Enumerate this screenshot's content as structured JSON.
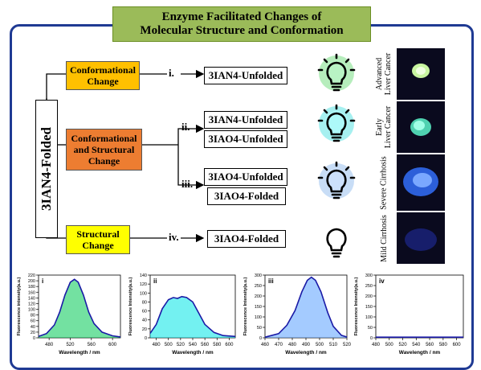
{
  "title": {
    "line1": "Enzyme Facilitated Changes of",
    "line2": "Molecular Structure and Conformation"
  },
  "root_label": "3IAN4-Folded",
  "branches": [
    {
      "label_lines": [
        "Conformational",
        "Change"
      ],
      "color": "#ffc000"
    },
    {
      "label_lines": [
        "Conformational",
        "and Structural",
        "Change"
      ],
      "color": "#ed7d31"
    },
    {
      "label_lines": [
        "Structural",
        "Change"
      ],
      "color": "#ffff00"
    }
  ],
  "steps": [
    "i.",
    "ii.",
    "iii.",
    "iv."
  ],
  "results": [
    "3IAN4-Unfolded",
    "3IAN4-Unfolded",
    "3IAO4-Unfolded",
    "3IAO4-Unfolded",
    "3IAO4-Folded",
    "3IAO4-Folded"
  ],
  "bulbs": [
    {
      "icon": "lightbulb-icon",
      "glow": "#2ecc40"
    },
    {
      "icon": "lightbulb-icon",
      "glow": "#00d4d4"
    },
    {
      "icon": "lightbulb-icon",
      "glow": "#4a90e2"
    },
    {
      "icon": "lightbulb-icon",
      "glow": "none"
    }
  ],
  "samples": [
    {
      "label_lines": [
        "Advanced",
        "Liver Cancer"
      ],
      "glow": "#c8f5a0"
    },
    {
      "label_lines": [
        "Early",
        "Liver Cancer"
      ],
      "glow": "#7fffd4"
    },
    {
      "label_lines": [
        "Severe Cirrhosis"
      ],
      "glow": "#3a7bff"
    },
    {
      "label_lines": [
        "Mild Cirrhosis"
      ],
      "glow": "#1a237e"
    }
  ],
  "chart_data": [
    {
      "type": "line",
      "panel": "i",
      "fill": "#00c853",
      "xlabel": "Wavelength / nm",
      "ylabel": "Fluorescence intensity(a.u.)",
      "xlim": [
        460,
        615
      ],
      "ylim": [
        0,
        220
      ],
      "xticks": [
        480,
        520,
        560,
        600
      ],
      "yticks": [
        0,
        20,
        40,
        60,
        80,
        100,
        120,
        140,
        160,
        180,
        200,
        220
      ],
      "x": [
        460,
        475,
        490,
        500,
        510,
        520,
        528,
        535,
        545,
        555,
        565,
        580,
        600,
        615
      ],
      "y": [
        5,
        15,
        45,
        90,
        150,
        195,
        205,
        195,
        150,
        90,
        50,
        20,
        7,
        3
      ]
    },
    {
      "type": "line",
      "panel": "ii",
      "fill": "#00e5e5",
      "xlabel": "Wavelength / nm",
      "ylabel": "Fluorescence Intensity(a.u.)",
      "xlim": [
        470,
        610
      ],
      "ylim": [
        0,
        140
      ],
      "xticks": [
        480,
        500,
        520,
        540,
        560,
        580,
        600
      ],
      "yticks": [
        0,
        20,
        40,
        60,
        80,
        100,
        120,
        140
      ],
      "x": [
        470,
        480,
        490,
        500,
        508,
        515,
        522,
        530,
        540,
        550,
        560,
        575,
        590,
        610
      ],
      "y": [
        10,
        30,
        65,
        85,
        90,
        88,
        92,
        90,
        80,
        55,
        30,
        12,
        5,
        3
      ]
    },
    {
      "type": "line",
      "panel": "iii",
      "fill": "#5aa0ff",
      "xlabel": "Wavelength / nm",
      "ylabel": "Fluorescence Intensity(a.u.)",
      "xlim": [
        460,
        520
      ],
      "ylim": [
        0,
        300
      ],
      "xticks": [
        460,
        470,
        480,
        490,
        500,
        510,
        520
      ],
      "yticks": [
        0,
        50,
        100,
        150,
        200,
        250,
        300
      ],
      "x": [
        460,
        470,
        476,
        482,
        487,
        491,
        494,
        497,
        501,
        506,
        510,
        516,
        520
      ],
      "y": [
        3,
        20,
        60,
        130,
        220,
        275,
        290,
        275,
        220,
        120,
        55,
        12,
        4
      ]
    },
    {
      "type": "line",
      "panel": "iv",
      "fill": "none",
      "xlabel": "Wavelength / nm",
      "ylabel": "Fluorescence Intensity(a.u.)",
      "xlim": [
        480,
        610
      ],
      "ylim": [
        0,
        300
      ],
      "xticks": [
        480,
        500,
        520,
        540,
        560,
        580,
        600
      ],
      "yticks": [
        0,
        50,
        100,
        150,
        200,
        250,
        300
      ],
      "x": [
        480,
        500,
        520,
        540,
        560,
        580,
        600,
        610
      ],
      "y": [
        3,
        3,
        3,
        3,
        3,
        3,
        3,
        3
      ]
    }
  ]
}
